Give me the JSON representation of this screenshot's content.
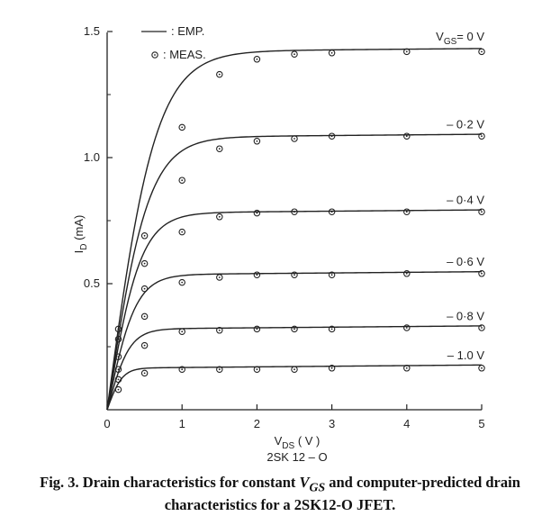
{
  "chart_data": {
    "type": "line",
    "title": "",
    "xlabel": "V",
    "xlabel_sub": "DS",
    "xlabel_unit": " ( V )",
    "subtitle": "2SK 12 – O",
    "ylabel": "I",
    "ylabel_sub": "D",
    "ylabel_unit": " (mA)",
    "xlim": [
      0,
      5
    ],
    "ylim": [
      0,
      1.5
    ],
    "x_ticks": [
      0,
      1,
      2,
      3,
      4,
      5
    ],
    "x_tick_labels": [
      "0",
      "1",
      "2",
      "3",
      "4",
      "5"
    ],
    "y_ticks": [
      0,
      0.5,
      1.0,
      1.5
    ],
    "y_tick_labels": [
      "0",
      "0.5",
      "1.0",
      "1.5"
    ],
    "grid": false,
    "legend": {
      "position": "top-left",
      "entries": [
        {
          "marker": "line",
          "label": ": EMP."
        },
        {
          "marker": "circle",
          "label": ": MEAS."
        }
      ]
    },
    "series": [
      {
        "name": "V_GS = 0 V",
        "label_main": "V",
        "label_sub": "GS",
        "label_tail": "= 0 V",
        "sat": 1.42,
        "tau": 0.65,
        "measured": [
          [
            0.15,
            0.32
          ],
          [
            0.5,
            0.69
          ],
          [
            1.0,
            1.12
          ],
          [
            1.5,
            1.33
          ],
          [
            2.0,
            1.39
          ],
          [
            2.5,
            1.41
          ],
          [
            3.0,
            1.415
          ],
          [
            4.0,
            1.42
          ],
          [
            5.0,
            1.42
          ]
        ]
      },
      {
        "name": "-0.2 V",
        "label": "– 0·2 V",
        "sat": 1.08,
        "tau": 0.55,
        "measured": [
          [
            0.15,
            0.28
          ],
          [
            0.5,
            0.58
          ],
          [
            1.0,
            0.91
          ],
          [
            1.5,
            1.035
          ],
          [
            2.0,
            1.065
          ],
          [
            2.5,
            1.075
          ],
          [
            3.0,
            1.085
          ],
          [
            4.0,
            1.085
          ],
          [
            5.0,
            1.085
          ]
        ]
      },
      {
        "name": "-0.4 V",
        "label": "– 0·4 V",
        "sat": 0.78,
        "tau": 0.45,
        "measured": [
          [
            0.15,
            0.21
          ],
          [
            0.5,
            0.48
          ],
          [
            1.0,
            0.705
          ],
          [
            1.5,
            0.765
          ],
          [
            2.0,
            0.78
          ],
          [
            2.5,
            0.785
          ],
          [
            3.0,
            0.785
          ],
          [
            4.0,
            0.785
          ],
          [
            5.0,
            0.785
          ]
        ]
      },
      {
        "name": "-0.6 V",
        "label": "– 0·6 V",
        "sat": 0.535,
        "tau": 0.38,
        "measured": [
          [
            0.15,
            0.16
          ],
          [
            0.5,
            0.37
          ],
          [
            1.0,
            0.505
          ],
          [
            1.5,
            0.525
          ],
          [
            2.0,
            0.535
          ],
          [
            2.5,
            0.535
          ],
          [
            3.0,
            0.535
          ],
          [
            4.0,
            0.54
          ],
          [
            5.0,
            0.54
          ]
        ]
      },
      {
        "name": "-0.8 V",
        "label": "– 0·8 V",
        "sat": 0.32,
        "tau": 0.3,
        "measured": [
          [
            0.15,
            0.12
          ],
          [
            0.5,
            0.255
          ],
          [
            1.0,
            0.31
          ],
          [
            1.5,
            0.315
          ],
          [
            2.0,
            0.32
          ],
          [
            2.5,
            0.32
          ],
          [
            3.0,
            0.32
          ],
          [
            4.0,
            0.325
          ],
          [
            5.0,
            0.325
          ]
        ]
      },
      {
        "name": "-1.0 V",
        "label": "– 1.0 V",
        "sat": 0.165,
        "tau": 0.2,
        "measured": [
          [
            0.15,
            0.08
          ],
          [
            0.5,
            0.145
          ],
          [
            1.0,
            0.16
          ],
          [
            1.5,
            0.16
          ],
          [
            2.0,
            0.16
          ],
          [
            2.5,
            0.16
          ],
          [
            3.0,
            0.165
          ],
          [
            4.0,
            0.165
          ],
          [
            5.0,
            0.165
          ]
        ]
      }
    ]
  },
  "caption": "Fig. 3.  Drain characteristics for constant V GS and computer-predicted drain characteristics for a 2SK12-O JFET.",
  "caption_parts": {
    "before": "Fig. 3.  Drain characteristics for constant ",
    "var": "V",
    "var_sub": "GS",
    "after": " and computer-predicted drain characteristics for a 2SK12-O JFET."
  }
}
